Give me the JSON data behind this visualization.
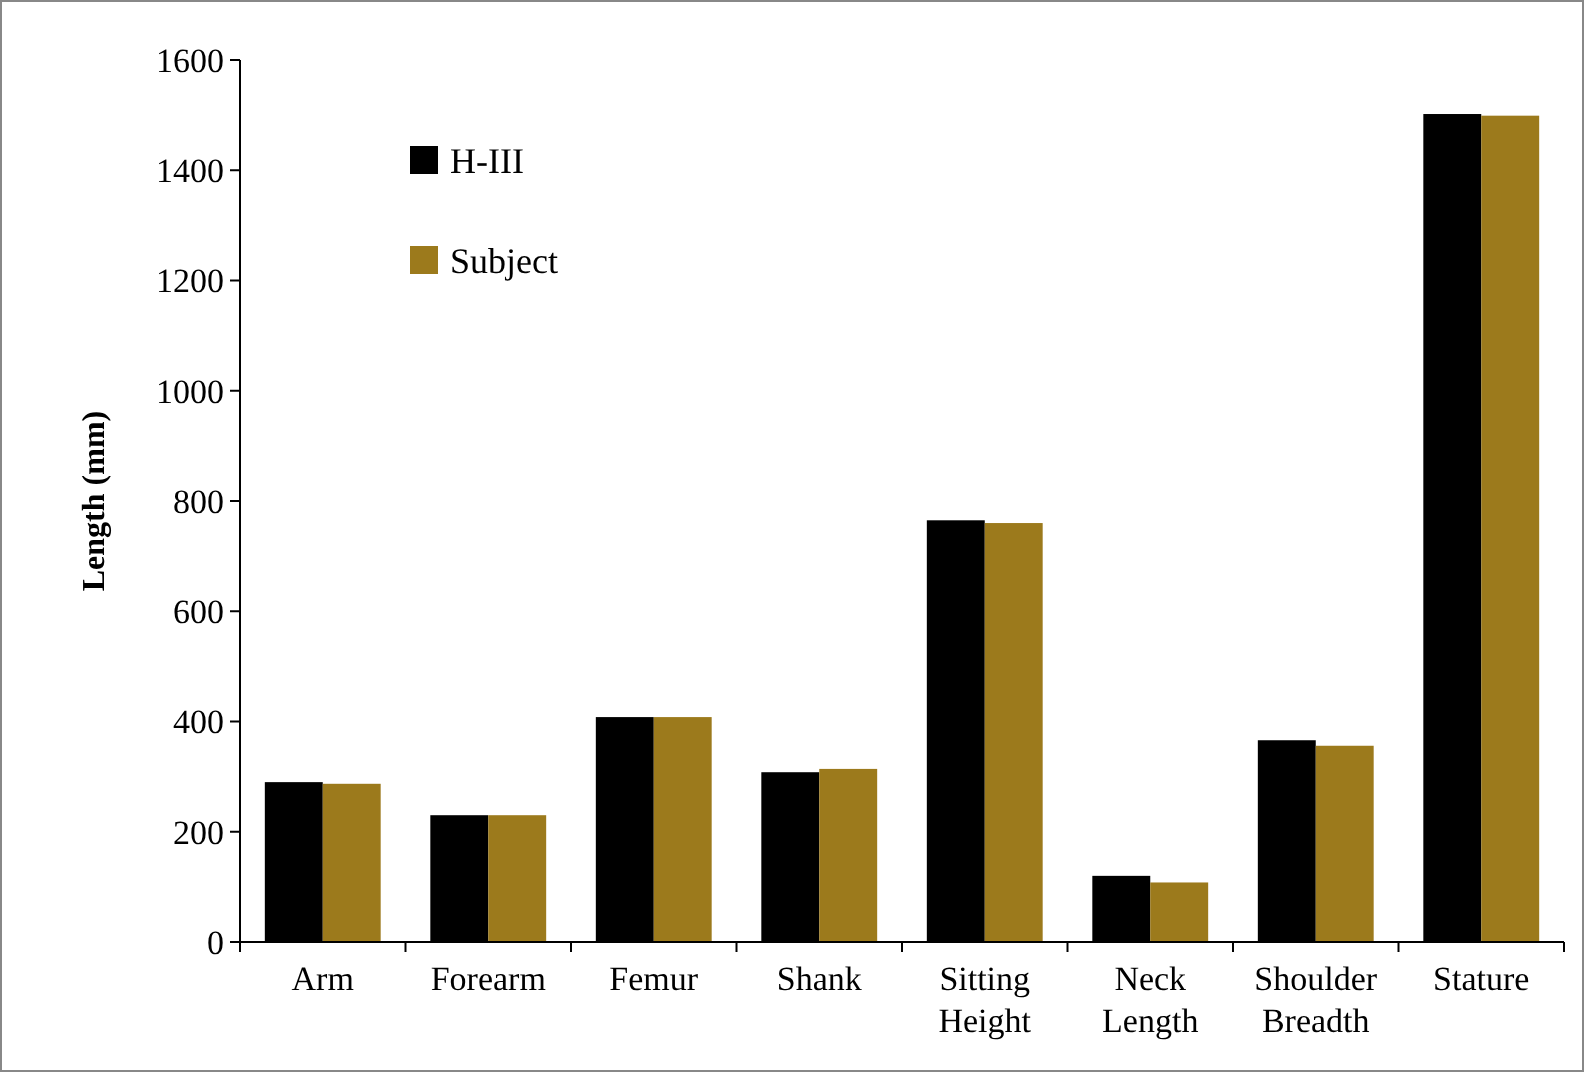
{
  "chart_data": {
    "type": "bar",
    "ylabel": "Length (mm)",
    "categories": [
      "Arm",
      "Forearm",
      "Femur",
      "Shank",
      "Sitting Height",
      "Neck Length",
      "Shoulder Breadth",
      "Stature"
    ],
    "series": [
      {
        "name": "H-III",
        "color": "#000000",
        "values": [
          290,
          230,
          408,
          308,
          765,
          120,
          366,
          1502
        ]
      },
      {
        "name": "Subject",
        "color": "#9c7a1c",
        "values": [
          287,
          230,
          408,
          314,
          760,
          108,
          356,
          1499
        ]
      }
    ],
    "ylim": [
      0,
      1600
    ],
    "yticks": [
      0,
      200,
      400,
      600,
      800,
      1000,
      1200,
      1400,
      1600
    ],
    "legend": "top left",
    "grid": false
  }
}
